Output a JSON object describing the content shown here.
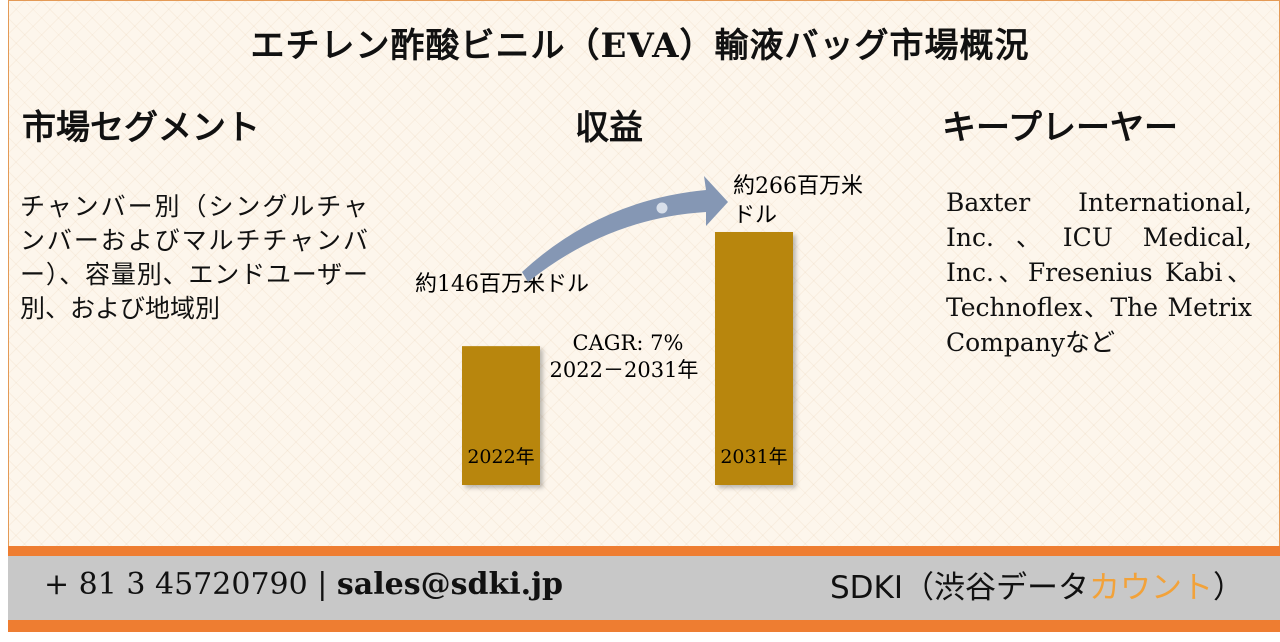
{
  "title": "エチレン酢酸ビニル（EVA）輸液バッグ市場概況",
  "segments": {
    "heading": "市場セグメント",
    "text": "チャンバー別（シングルチャンバーおよびマルチチャンバー）、容量別、エンドユーザー別、および地域別"
  },
  "revenue": {
    "heading": "収益"
  },
  "players": {
    "heading": "キープレーヤー",
    "text": "Baxter International, Inc.、ICU Medical, Inc.、Fresenius Kabi、Technoflex、The Metrix Companyなど"
  },
  "chart_data": {
    "type": "bar",
    "categories": [
      "2022年",
      "2031年"
    ],
    "values": [
      146,
      266
    ],
    "value_labels": [
      "約146百万米ドル",
      "約266百万米ドル"
    ],
    "unit": "百万米ドル",
    "annotation": {
      "cagr": "CAGR: 7%",
      "period": "2022－2031年"
    },
    "bar_color": "#b8860b",
    "arrow_color": "#8597b4"
  },
  "footer": {
    "phone": "+ 81 3 45720790",
    "separator": "|",
    "email": "sales@sdki.jp",
    "brand_prefix": "SDKI（渋谷データ",
    "brand_accent": "カウント",
    "brand_suffix": "）",
    "accent_color": "#f2a23a"
  }
}
